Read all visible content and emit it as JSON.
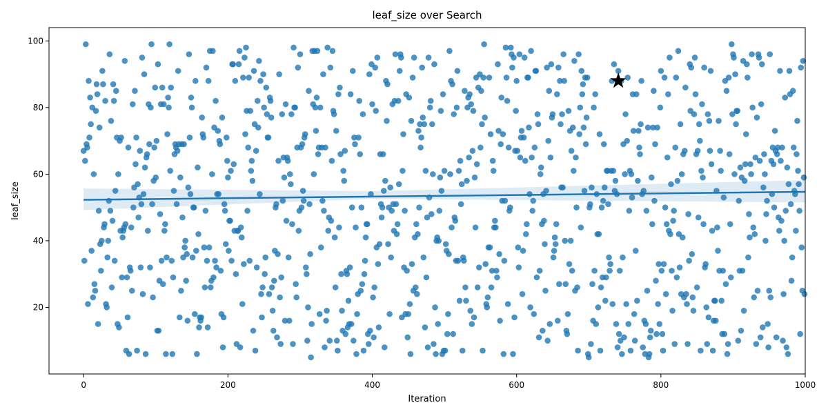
{
  "chart_data": {
    "type": "scatter",
    "title": "leaf_size over Search",
    "xlabel": "Iteration",
    "ylabel": "leaf_size",
    "xlim": [
      -48,
      1000
    ],
    "ylim": [
      0,
      104
    ],
    "xticks": [
      0,
      200,
      400,
      600,
      800,
      1000
    ],
    "yticks": [
      20,
      40,
      60,
      80,
      100
    ],
    "grid": false,
    "legend": "none",
    "series": [
      {
        "kind": "points",
        "color": "#1f77b4",
        "n_points": 1000,
        "y_range": [
          5,
          99
        ],
        "distribution": "uniform random over iterations 0-999"
      },
      {
        "kind": "regression",
        "color": "#1f77b4",
        "x": [
          0,
          1000
        ],
        "y": [
          52.3,
          54.7
        ],
        "ci_band": [
          [
            0,
            49.2,
            55.7
          ],
          [
            400,
            52.6,
            54.9
          ],
          [
            1000,
            51.5,
            58.2
          ]
        ]
      },
      {
        "kind": "best-marker",
        "marker": "star",
        "color": "#000000",
        "x": 741,
        "y": 88
      }
    ]
  }
}
